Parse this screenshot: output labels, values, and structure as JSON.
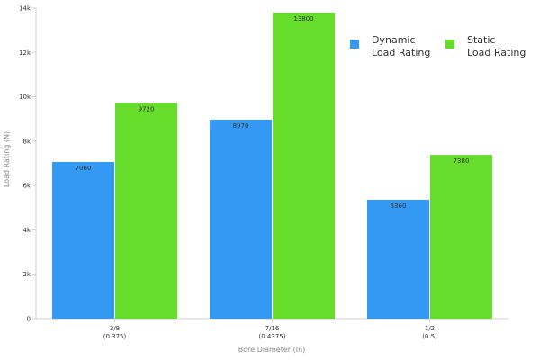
{
  "chart_data": {
    "type": "bar",
    "title": "",
    "xlabel": "Bore Diameter (In)",
    "ylabel": "Load Rating (N)",
    "ylim": [
      0,
      14000
    ],
    "yticks": [
      0,
      2000,
      4000,
      6000,
      8000,
      10000,
      12000,
      14000
    ],
    "ytick_labels": [
      "0",
      "2k",
      "4k",
      "6k",
      "8k",
      "10k",
      "12k",
      "14k"
    ],
    "categories": [
      [
        "3/8",
        "(0.375)"
      ],
      [
        "7/16",
        "(0.4375)"
      ],
      [
        "1/2",
        "(0.5)"
      ]
    ],
    "series": [
      {
        "name": [
          "Dynamic",
          "Load Rating"
        ],
        "color": "#3399f3",
        "values": [
          7060,
          8970,
          5360
        ]
      },
      {
        "name": [
          "Static",
          "Load Rating"
        ],
        "color": "#66dd2a",
        "values": [
          9720,
          13800,
          7380
        ]
      }
    ],
    "grid": false,
    "legend_position": "top-right"
  }
}
